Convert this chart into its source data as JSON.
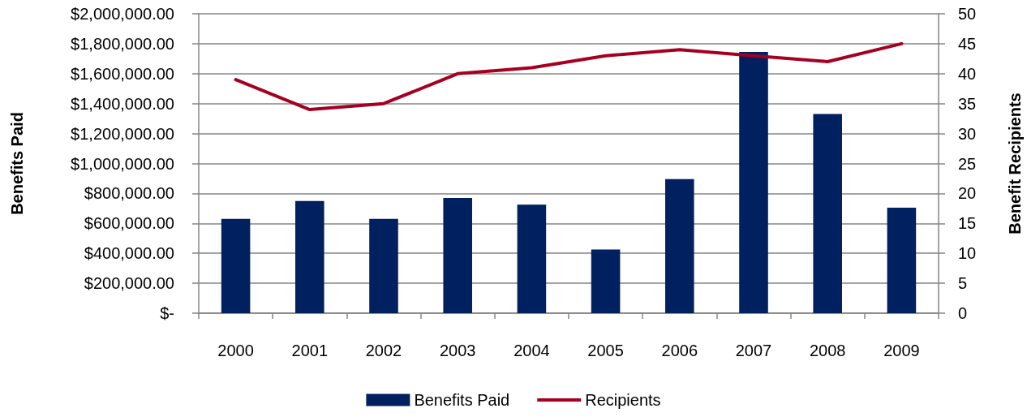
{
  "chart_data": {
    "type": "bar",
    "categories": [
      "2000",
      "2001",
      "2002",
      "2003",
      "2004",
      "2005",
      "2006",
      "2007",
      "2008",
      "2009"
    ],
    "ylabel": "Benefits Paid",
    "y2label": "Benefit Recipients",
    "ylim": [
      0,
      2000000
    ],
    "yticks": [
      {
        "value": 0,
        "label": "$-"
      },
      {
        "value": 200000,
        "label": "$200,000.00"
      },
      {
        "value": 400000,
        "label": "$400,000.00"
      },
      {
        "value": 600000,
        "label": "$600,000.00"
      },
      {
        "value": 800000,
        "label": "$800,000.00"
      },
      {
        "value": 1000000,
        "label": "$1,000,000.00"
      },
      {
        "value": 1200000,
        "label": "$1,200,000.00"
      },
      {
        "value": 1400000,
        "label": "$1,400,000.00"
      },
      {
        "value": 1600000,
        "label": "$1,600,000.00"
      },
      {
        "value": 1800000,
        "label": "$1,800,000.00"
      },
      {
        "value": 2000000,
        "label": "$2,000,000.00"
      }
    ],
    "y2lim": [
      0,
      50
    ],
    "y2ticks": [
      0,
      5,
      10,
      15,
      20,
      25,
      30,
      35,
      40,
      45,
      50
    ],
    "series": [
      {
        "name": "Benefits Paid",
        "type": "bar",
        "color": "#002060",
        "values": [
          630000,
          750000,
          630000,
          770000,
          725000,
          425000,
          895000,
          1745000,
          1330000,
          705000
        ]
      },
      {
        "name": "Recipients",
        "type": "line",
        "axis": "y2",
        "color": "#a50021",
        "values": [
          39,
          34,
          35,
          40,
          41,
          43,
          44,
          43,
          42,
          45
        ]
      }
    ],
    "grid": "y",
    "legend": "bottom",
    "marker": "none"
  }
}
